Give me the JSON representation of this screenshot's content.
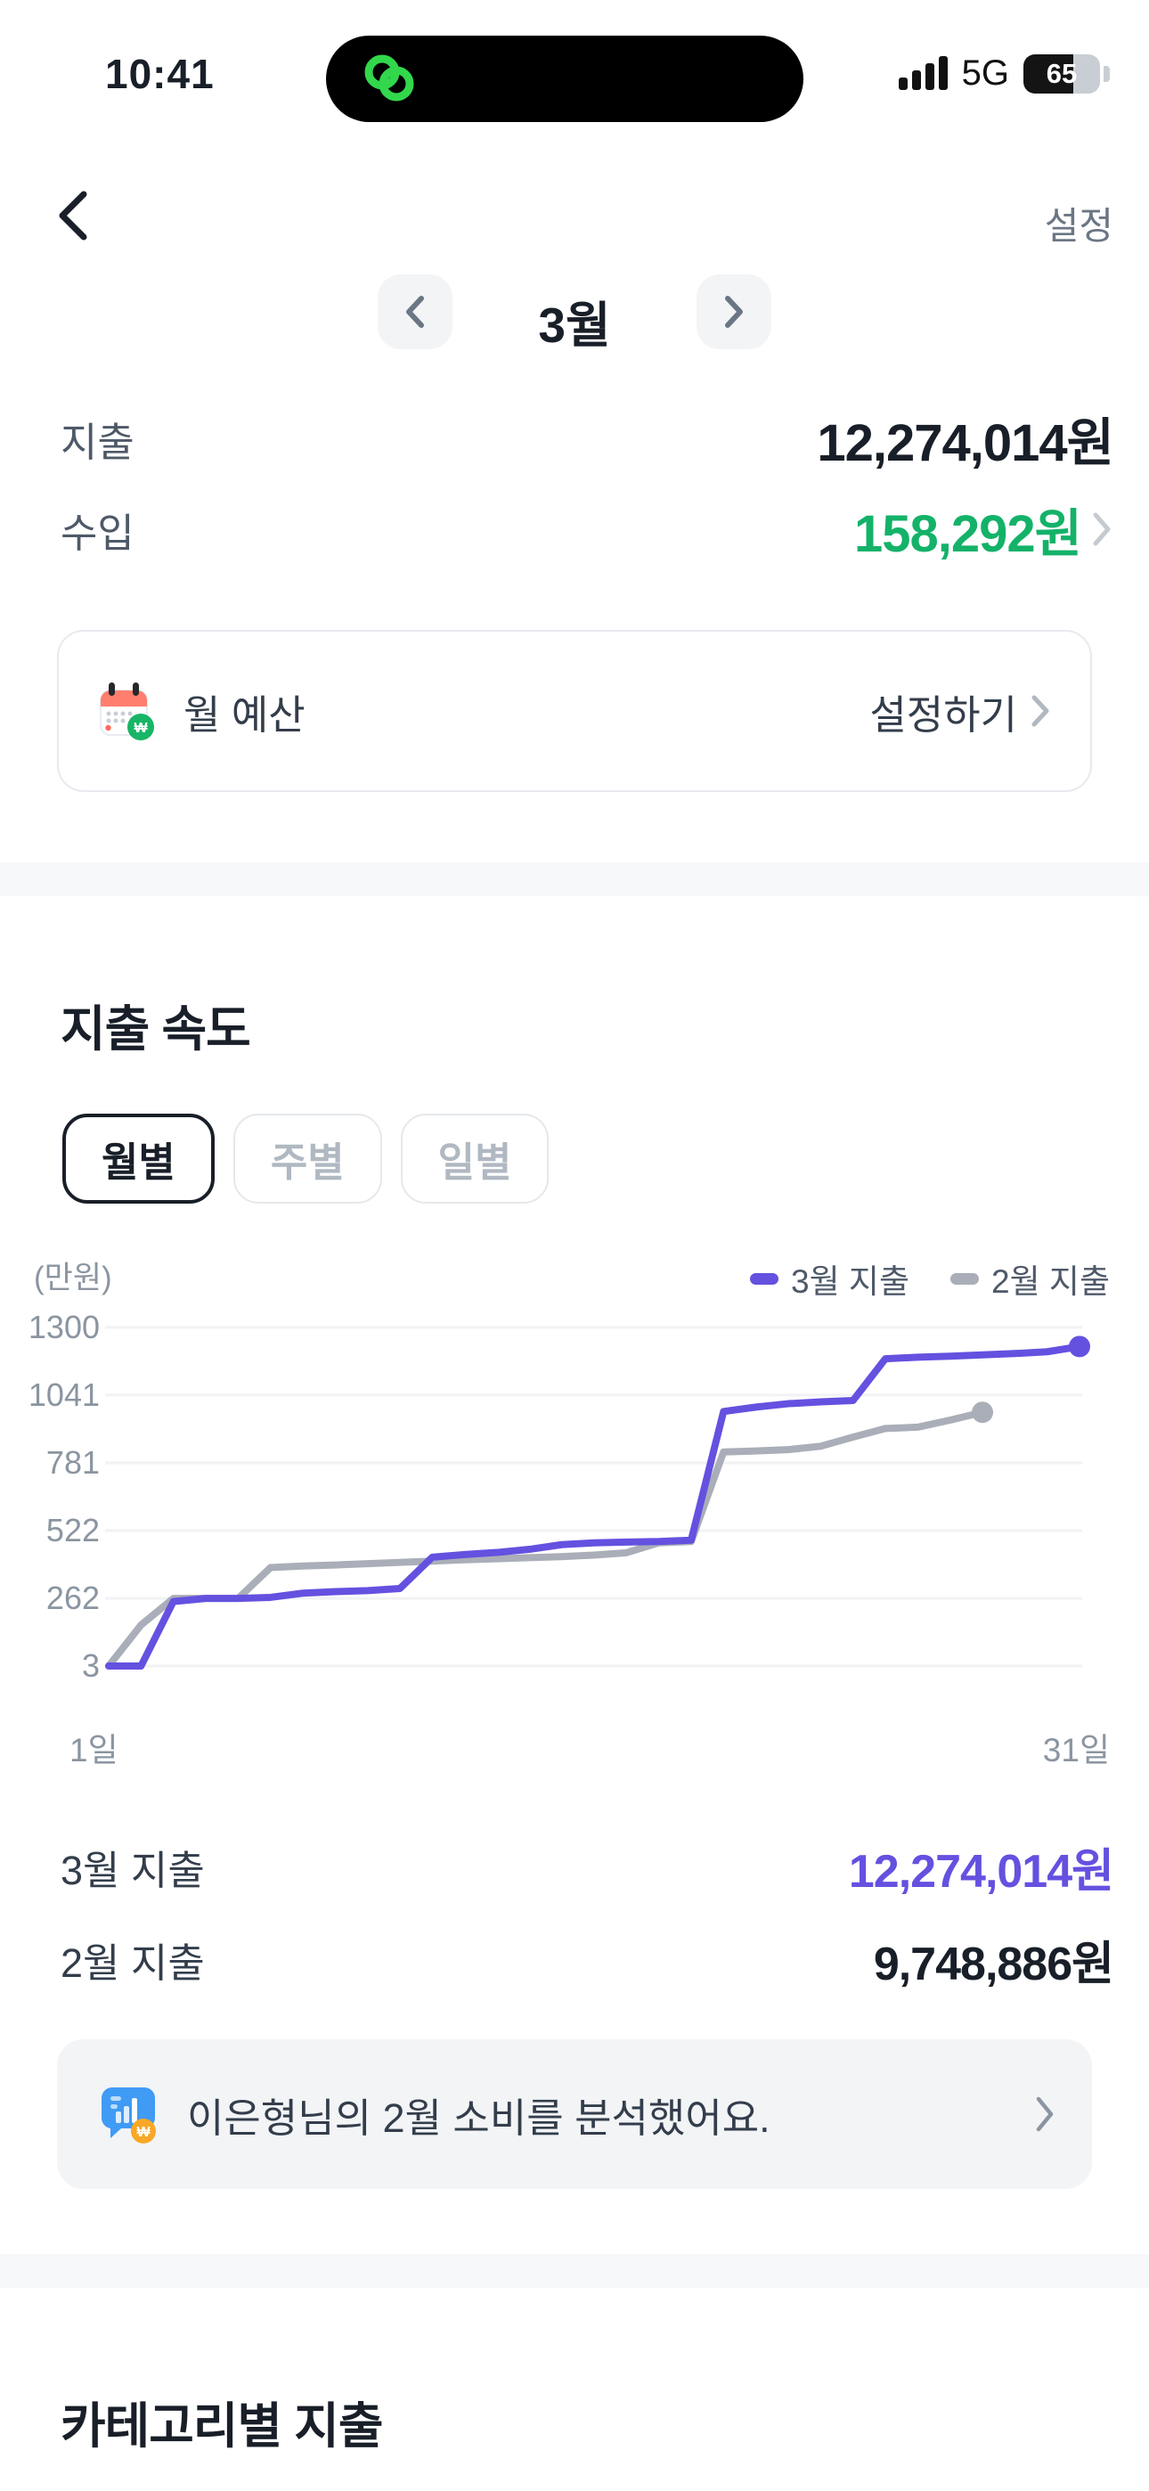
{
  "status_bar": {
    "time": "10:41",
    "network": "5G",
    "battery_percent": 65,
    "battery_label": "65"
  },
  "header": {
    "settings_label": "설정"
  },
  "month_nav": {
    "current_month": "3월"
  },
  "summary": {
    "expense_label": "지출",
    "expense_value": "12,274,014원",
    "income_label": "수입",
    "income_value": "158,292원"
  },
  "budget_card": {
    "label": "월 예산",
    "action": "설정하기"
  },
  "speed_section": {
    "title": "지출 속도",
    "tabs": [
      {
        "label": "월별",
        "selected": true
      },
      {
        "label": "주별",
        "selected": false
      },
      {
        "label": "일별",
        "selected": false
      }
    ],
    "unit_label": "(만원)",
    "rows": [
      {
        "label": "3월 지출",
        "value": "12,274,014원",
        "color": "#6451e0"
      },
      {
        "label": "2월 지출",
        "value": "9,748,886원",
        "color": "#191f28"
      }
    ]
  },
  "chart_data": {
    "type": "line",
    "title": "지출 속도 (월별) — 누적 지출",
    "unit": "만원",
    "x_axis": {
      "min_label": "1일",
      "max_label": "31일",
      "range": [
        1,
        31
      ]
    },
    "y_axis": {
      "ticks": [
        3,
        262,
        522,
        781,
        1041,
        1300
      ],
      "range": [
        3,
        1300
      ]
    },
    "grid": true,
    "legend_position": "top-right",
    "series": [
      {
        "name": "3월 지출",
        "color": "#6451e0",
        "end_dot": true,
        "x_start": 1,
        "values": [
          3,
          3,
          250,
          262,
          262,
          266,
          282,
          288,
          292,
          300,
          420,
          430,
          438,
          450,
          468,
          475,
          478,
          480,
          485,
          978,
          995,
          1008,
          1015,
          1020,
          1180,
          1186,
          1190,
          1195,
          1200,
          1207,
          1227
        ]
      },
      {
        "name": "2월 지출",
        "color": "#a9aeb8",
        "end_dot": true,
        "x_start": 1,
        "values": [
          3,
          160,
          262,
          262,
          262,
          380,
          386,
          390,
          395,
          400,
          405,
          410,
          414,
          418,
          422,
          428,
          437,
          475,
          480,
          823,
          827,
          832,
          845,
          880,
          913,
          918,
          945,
          975
        ]
      }
    ]
  },
  "analysis_banner": {
    "text": "이은형님의 2월 소비를 분석했어요."
  },
  "category_section": {
    "title": "카테고리별 지출"
  },
  "colors": {
    "accent_purple": "#6451e0",
    "line_gray": "#a9aeb8",
    "green": "#14b269",
    "grid": "#f1f2f4",
    "batt_dark": "#141414",
    "batt_light": "#c9ced4"
  }
}
